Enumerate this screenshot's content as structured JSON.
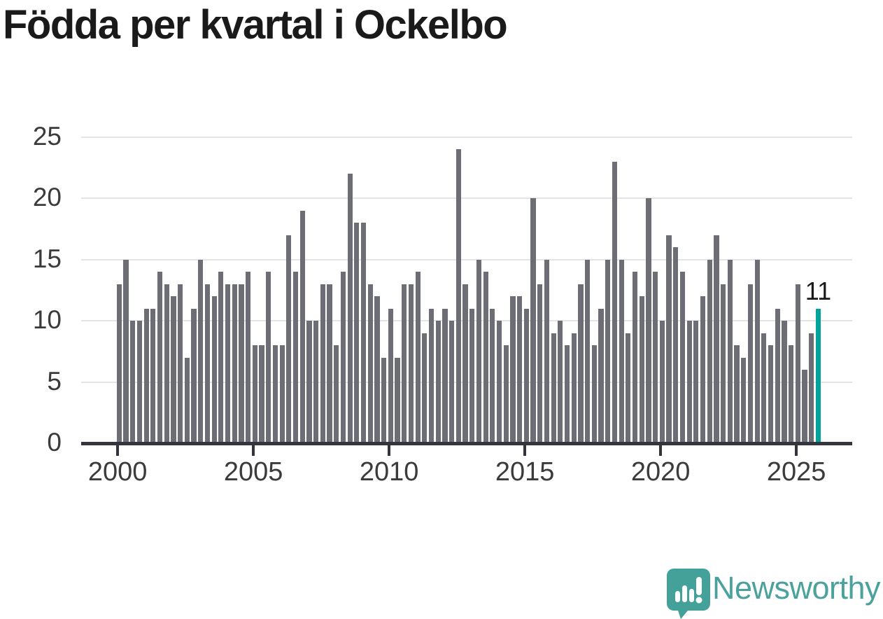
{
  "title": "Födda per kvartal i Ockelbo",
  "y_axis": {
    "ticks": [
      0,
      5,
      10,
      15,
      20,
      25
    ]
  },
  "x_axis": {
    "ticks": [
      "2000",
      "2005",
      "2010",
      "2015",
      "2020",
      "2025"
    ],
    "tick_quarter_indices": [
      0,
      20,
      40,
      60,
      80,
      100
    ]
  },
  "annotation": {
    "label": "11"
  },
  "logo": {
    "text": "Newsworthy",
    "icon": "newsworthy-bubble-chart-icon",
    "text_color": "#4ba29c",
    "bubble_color": "#44a19a"
  },
  "colors": {
    "bar": "#6d6d75",
    "highlight": "#00a39b",
    "gridline": "#e4e4e4",
    "axis": "#34343c",
    "axis_label": "#3b3b3b",
    "title": "#1a1a1a"
  },
  "chart_data": {
    "type": "bar",
    "title": "Födda per kvartal i Ockelbo",
    "xlabel": "",
    "ylabel": "",
    "ylim": [
      0,
      25
    ],
    "grid": true,
    "legend": false,
    "highlight_index": 103,
    "highlight_value_label": "11",
    "categories": [
      "2000 Q1",
      "2000 Q2",
      "2000 Q3",
      "2000 Q4",
      "2001 Q1",
      "2001 Q2",
      "2001 Q3",
      "2001 Q4",
      "2002 Q1",
      "2002 Q2",
      "2002 Q3",
      "2002 Q4",
      "2003 Q1",
      "2003 Q2",
      "2003 Q3",
      "2003 Q4",
      "2004 Q1",
      "2004 Q2",
      "2004 Q3",
      "2004 Q4",
      "2005 Q1",
      "2005 Q2",
      "2005 Q3",
      "2005 Q4",
      "2006 Q1",
      "2006 Q2",
      "2006 Q3",
      "2006 Q4",
      "2007 Q1",
      "2007 Q2",
      "2007 Q3",
      "2007 Q4",
      "2008 Q1",
      "2008 Q2",
      "2008 Q3",
      "2008 Q4",
      "2009 Q1",
      "2009 Q2",
      "2009 Q3",
      "2009 Q4",
      "2010 Q1",
      "2010 Q2",
      "2010 Q3",
      "2010 Q4",
      "2011 Q1",
      "2011 Q2",
      "2011 Q3",
      "2011 Q4",
      "2012 Q1",
      "2012 Q2",
      "2012 Q3",
      "2012 Q4",
      "2013 Q1",
      "2013 Q2",
      "2013 Q3",
      "2013 Q4",
      "2014 Q1",
      "2014 Q2",
      "2014 Q3",
      "2014 Q4",
      "2015 Q1",
      "2015 Q2",
      "2015 Q3",
      "2015 Q4",
      "2016 Q1",
      "2016 Q2",
      "2016 Q3",
      "2016 Q4",
      "2017 Q1",
      "2017 Q2",
      "2017 Q3",
      "2017 Q4",
      "2018 Q1",
      "2018 Q2",
      "2018 Q3",
      "2018 Q4",
      "2019 Q1",
      "2019 Q2",
      "2019 Q3",
      "2019 Q4",
      "2020 Q1",
      "2020 Q2",
      "2020 Q3",
      "2020 Q4",
      "2021 Q1",
      "2021 Q2",
      "2021 Q3",
      "2021 Q4",
      "2022 Q1",
      "2022 Q2",
      "2022 Q3",
      "2022 Q4",
      "2023 Q1",
      "2023 Q2",
      "2023 Q3",
      "2023 Q4",
      "2024 Q1",
      "2024 Q2",
      "2024 Q3",
      "2024 Q4",
      "2025 Q1",
      "2025 Q2",
      "2025 Q3",
      "2025 Q4"
    ],
    "values": [
      13,
      15,
      10,
      10,
      11,
      11,
      14,
      13,
      12,
      13,
      7,
      11,
      15,
      13,
      12,
      14,
      13,
      13,
      13,
      14,
      8,
      8,
      14,
      8,
      8,
      17,
      14,
      19,
      10,
      10,
      13,
      13,
      8,
      14,
      22,
      18,
      18,
      13,
      12,
      7,
      11,
      7,
      13,
      13,
      14,
      9,
      11,
      10,
      11,
      10,
      24,
      13,
      11,
      15,
      14,
      11,
      10,
      8,
      12,
      12,
      11,
      20,
      13,
      15,
      9,
      10,
      8,
      9,
      13,
      15,
      8,
      11,
      15,
      23,
      15,
      9,
      14,
      12,
      20,
      14,
      10,
      17,
      16,
      14,
      10,
      10,
      12,
      15,
      17,
      13,
      15,
      8,
      7,
      13,
      15,
      9,
      8,
      11,
      10,
      8,
      13,
      6,
      9,
      11
    ]
  }
}
